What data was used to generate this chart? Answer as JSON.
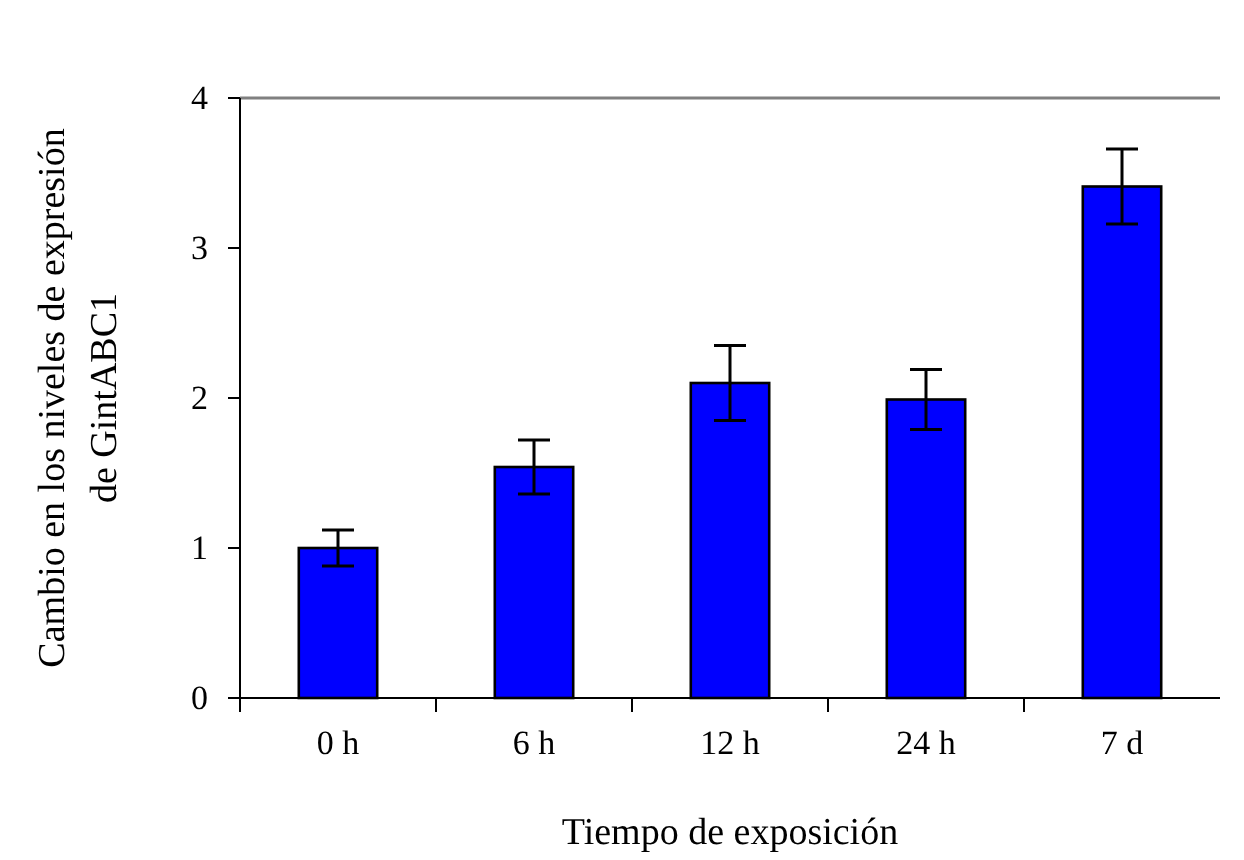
{
  "chart_data": {
    "type": "bar",
    "xlabel": "Tiempo de exposición",
    "ylabel": "Cambio en los niveles de expresión de GintABC1",
    "categories": [
      "0 h",
      "6 h",
      "12 h",
      "24 h",
      "7 d"
    ],
    "values": [
      1.0,
      1.54,
      2.1,
      1.99,
      3.41
    ],
    "errors": [
      0.12,
      0.18,
      0.25,
      0.2,
      0.25
    ],
    "color": "#0000ff",
    "ylim": [
      0,
      4
    ],
    "yticks": [
      0,
      1,
      2,
      3,
      4
    ],
    "grid": false
  }
}
